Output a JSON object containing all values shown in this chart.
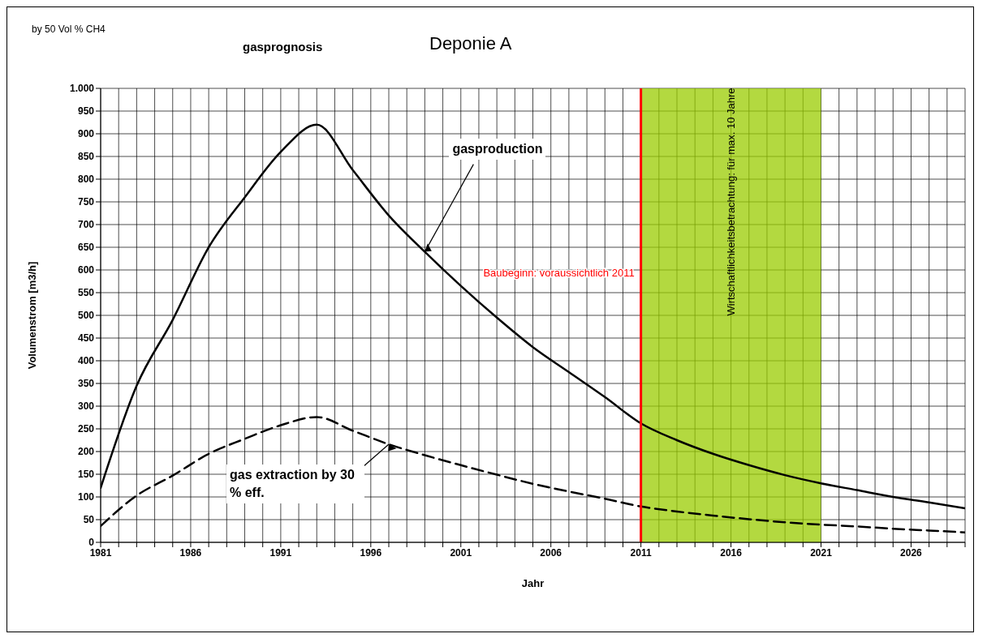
{
  "chart_data": {
    "type": "line",
    "title": "gasprognosis",
    "subtitle": "Deponie A",
    "xlabel": "Jahr",
    "ylabel": "Volumenstrom [m3/h]",
    "annotations": [
      "by 50 Vol % CH4",
      {
        "text": "gasproduction",
        "x": 1999,
        "y": 640
      },
      {
        "text": "gas extraction by 30 % eff.",
        "x": 1997,
        "y": 216
      }
    ],
    "x": [
      1981,
      1983,
      1985,
      1987,
      1989,
      1991,
      1993,
      1995,
      1997,
      1999,
      2001,
      2003,
      2005,
      2007,
      2009,
      2011,
      2013,
      2015,
      2017,
      2019,
      2021,
      2023,
      2025,
      2027,
      2029
    ],
    "series": [
      {
        "color": "#000000",
        "line_style": "solid",
        "values": [
          120,
          345,
          490,
          650,
          760,
          860,
          920,
          820,
          720,
          640,
          565,
          495,
          430,
          375,
          320,
          262,
          225,
          195,
          170,
          148,
          130,
          115,
          100,
          88,
          75
        ]
      },
      {
        "color": "#000000",
        "line_style": "dashed",
        "values": [
          36,
          103,
          147,
          195,
          228,
          258,
          276,
          246,
          216,
          192,
          170,
          149,
          129,
          112,
          96,
          79,
          68,
          59,
          51,
          44,
          39,
          35,
          30,
          26,
          22
        ]
      }
    ],
    "xlim": [
      1981,
      2029
    ],
    "xticks": [
      1981,
      {
        "value": 1982,
        "label": null
      },
      {
        "value": 1983,
        "label": null
      },
      {
        "value": 1984,
        "label": null
      },
      {
        "value": 1985,
        "label": null
      },
      1986,
      {
        "value": 1987,
        "label": null
      },
      {
        "value": 1988,
        "label": null
      },
      {
        "value": 1989,
        "label": null
      },
      {
        "value": 1990,
        "label": null
      },
      1991,
      {
        "value": 1992,
        "label": null
      },
      {
        "value": 1993,
        "label": null
      },
      {
        "value": 1994,
        "label": null
      },
      {
        "value": 1995,
        "label": null
      },
      1996,
      {
        "value": 1997,
        "label": null
      },
      {
        "value": 1998,
        "label": null
      },
      {
        "value": 1999,
        "label": null
      },
      {
        "value": 2000,
        "label": null
      },
      2001,
      {
        "value": 2002,
        "label": null
      },
      {
        "value": 2003,
        "label": null
      },
      {
        "value": 2004,
        "label": null
      },
      {
        "value": 2005,
        "label": null
      },
      2006,
      {
        "value": 2007,
        "label": null
      },
      {
        "value": 2008,
        "label": null
      },
      {
        "value": 2009,
        "label": null
      },
      {
        "value": 2010,
        "label": null
      },
      2011,
      {
        "value": 2012,
        "label": null
      },
      {
        "value": 2013,
        "label": null
      },
      {
        "value": 2014,
        "label": null
      },
      {
        "value": 2015,
        "label": null
      },
      2016,
      {
        "value": 2017,
        "label": null
      },
      {
        "value": 2018,
        "label": null
      },
      {
        "value": 2019,
        "label": null
      },
      {
        "value": 2020,
        "label": null
      },
      2021,
      {
        "value": 2022,
        "label": null
      },
      {
        "value": 2023,
        "label": null
      },
      {
        "value": 2024,
        "label": null
      },
      {
        "value": 2025,
        "label": null
      },
      2026,
      {
        "value": 2027,
        "label": null
      },
      {
        "value": 2028,
        "label": null
      },
      {
        "value": 2029,
        "label": null
      }
    ],
    "ylim": [
      0,
      1000
    ],
    "yticks": [
      0,
      50,
      100,
      150,
      200,
      250,
      300,
      350,
      400,
      450,
      500,
      550,
      600,
      650,
      700,
      750,
      800,
      850,
      900,
      950,
      {
        "value": 1000,
        "label": "1.000"
      }
    ],
    "ref_lines": [
      {
        "axis": "x",
        "value": 2011,
        "label": "Baubeginn: voraussichtlich 2011",
        "color": "#ff0000"
      }
    ],
    "bands": [
      {
        "axis": "x",
        "from": 2011,
        "to": 2021,
        "label": "Wirtschaftlichkeitsbetrachtung: für max. 10 Jahre",
        "color": "#99cc00"
      }
    ],
    "grid": true,
    "legend": false,
    "marker": "none"
  }
}
